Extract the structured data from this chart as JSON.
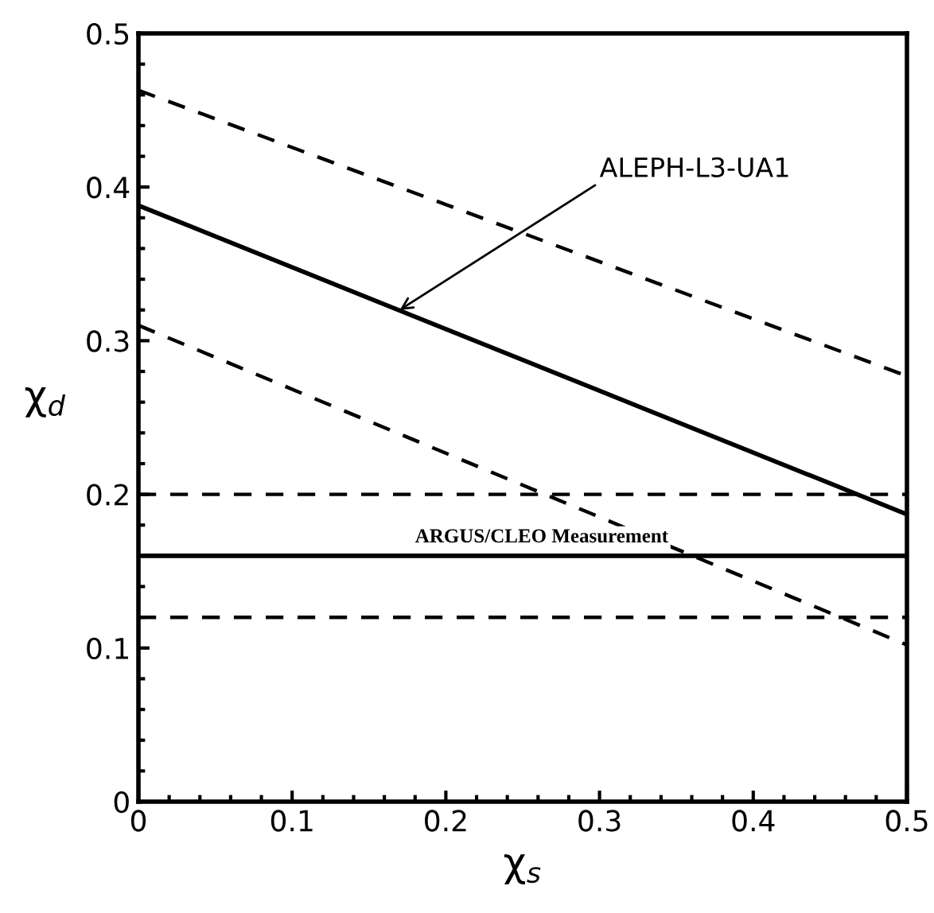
{
  "chart_data": {
    "type": "line",
    "xlabel": "χ$_{s}$",
    "ylabel": "χ$_{d}$",
    "xlim": [
      0,
      0.5
    ],
    "ylim": [
      0,
      0.5
    ],
    "xticks": [
      0,
      {
        "value": 0.02,
        "label": null
      },
      {
        "value": 0.04,
        "label": null
      },
      {
        "value": 0.06,
        "label": null
      },
      {
        "value": 0.08,
        "label": null
      },
      0.1,
      {
        "value": 0.12,
        "label": null
      },
      {
        "value": 0.14,
        "label": null
      },
      {
        "value": 0.16,
        "label": null
      },
      {
        "value": 0.18,
        "label": null
      },
      0.2,
      {
        "value": 0.22,
        "label": null
      },
      {
        "value": 0.24,
        "label": null
      },
      {
        "value": 0.26,
        "label": null
      },
      {
        "value": 0.28,
        "label": null
      },
      0.3,
      {
        "value": 0.32,
        "label": null
      },
      {
        "value": 0.34,
        "label": null
      },
      {
        "value": 0.36,
        "label": null
      },
      {
        "value": 0.38,
        "label": null
      },
      0.4,
      {
        "value": 0.42,
        "label": null
      },
      {
        "value": 0.44,
        "label": null
      },
      {
        "value": 0.46,
        "label": null
      },
      {
        "value": 0.48,
        "label": null
      },
      0.5
    ],
    "yticks": [
      0,
      {
        "value": 0.02,
        "label": null
      },
      {
        "value": 0.04,
        "label": null
      },
      {
        "value": 0.06,
        "label": null
      },
      {
        "value": 0.08,
        "label": null
      },
      0.1,
      {
        "value": 0.12,
        "label": null
      },
      {
        "value": 0.14,
        "label": null
      },
      {
        "value": 0.16,
        "label": null
      },
      {
        "value": 0.18,
        "label": null
      },
      0.2,
      {
        "value": 0.22,
        "label": null
      },
      {
        "value": 0.24,
        "label": null
      },
      {
        "value": 0.26,
        "label": null
      },
      {
        "value": 0.28,
        "label": null
      },
      0.3,
      {
        "value": 0.32,
        "label": null
      },
      {
        "value": 0.34,
        "label": null
      },
      {
        "value": 0.36,
        "label": null
      },
      {
        "value": 0.38,
        "label": null
      },
      0.4,
      {
        "value": 0.42,
        "label": null
      },
      {
        "value": 0.44,
        "label": null
      },
      {
        "value": 0.46,
        "label": null
      },
      {
        "value": 0.48,
        "label": null
      },
      0.5
    ],
    "x": [
      0,
      0.5
    ],
    "series": [
      {
        "color": "#000000",
        "values": [
          0.463,
          0.277
        ],
        "line_style": "dashed"
      },
      {
        "color": "#000000",
        "values": [
          0.388,
          0.187
        ],
        "line_style": "solid"
      },
      {
        "color": "#000000",
        "values": [
          0.31,
          0.102
        ],
        "line_style": "dashed"
      }
    ],
    "ref_lines": [
      {
        "axis": "y",
        "value": 0.2,
        "color": "#000000",
        "line_style": "dashed"
      },
      {
        "axis": "y",
        "value": 0.16,
        "color": "#000000",
        "line_style": "solid",
        "label": "ARGUS/CLEO Measurement"
      },
      {
        "axis": "y",
        "value": 0.12,
        "color": "#000000",
        "line_style": "dashed"
      }
    ],
    "annotations": [
      {
        "text": "ALEPH-L3-UA1",
        "x": 0.17,
        "y": 0.32
      }
    ],
    "grid": false,
    "legend": false,
    "marker": "none"
  }
}
